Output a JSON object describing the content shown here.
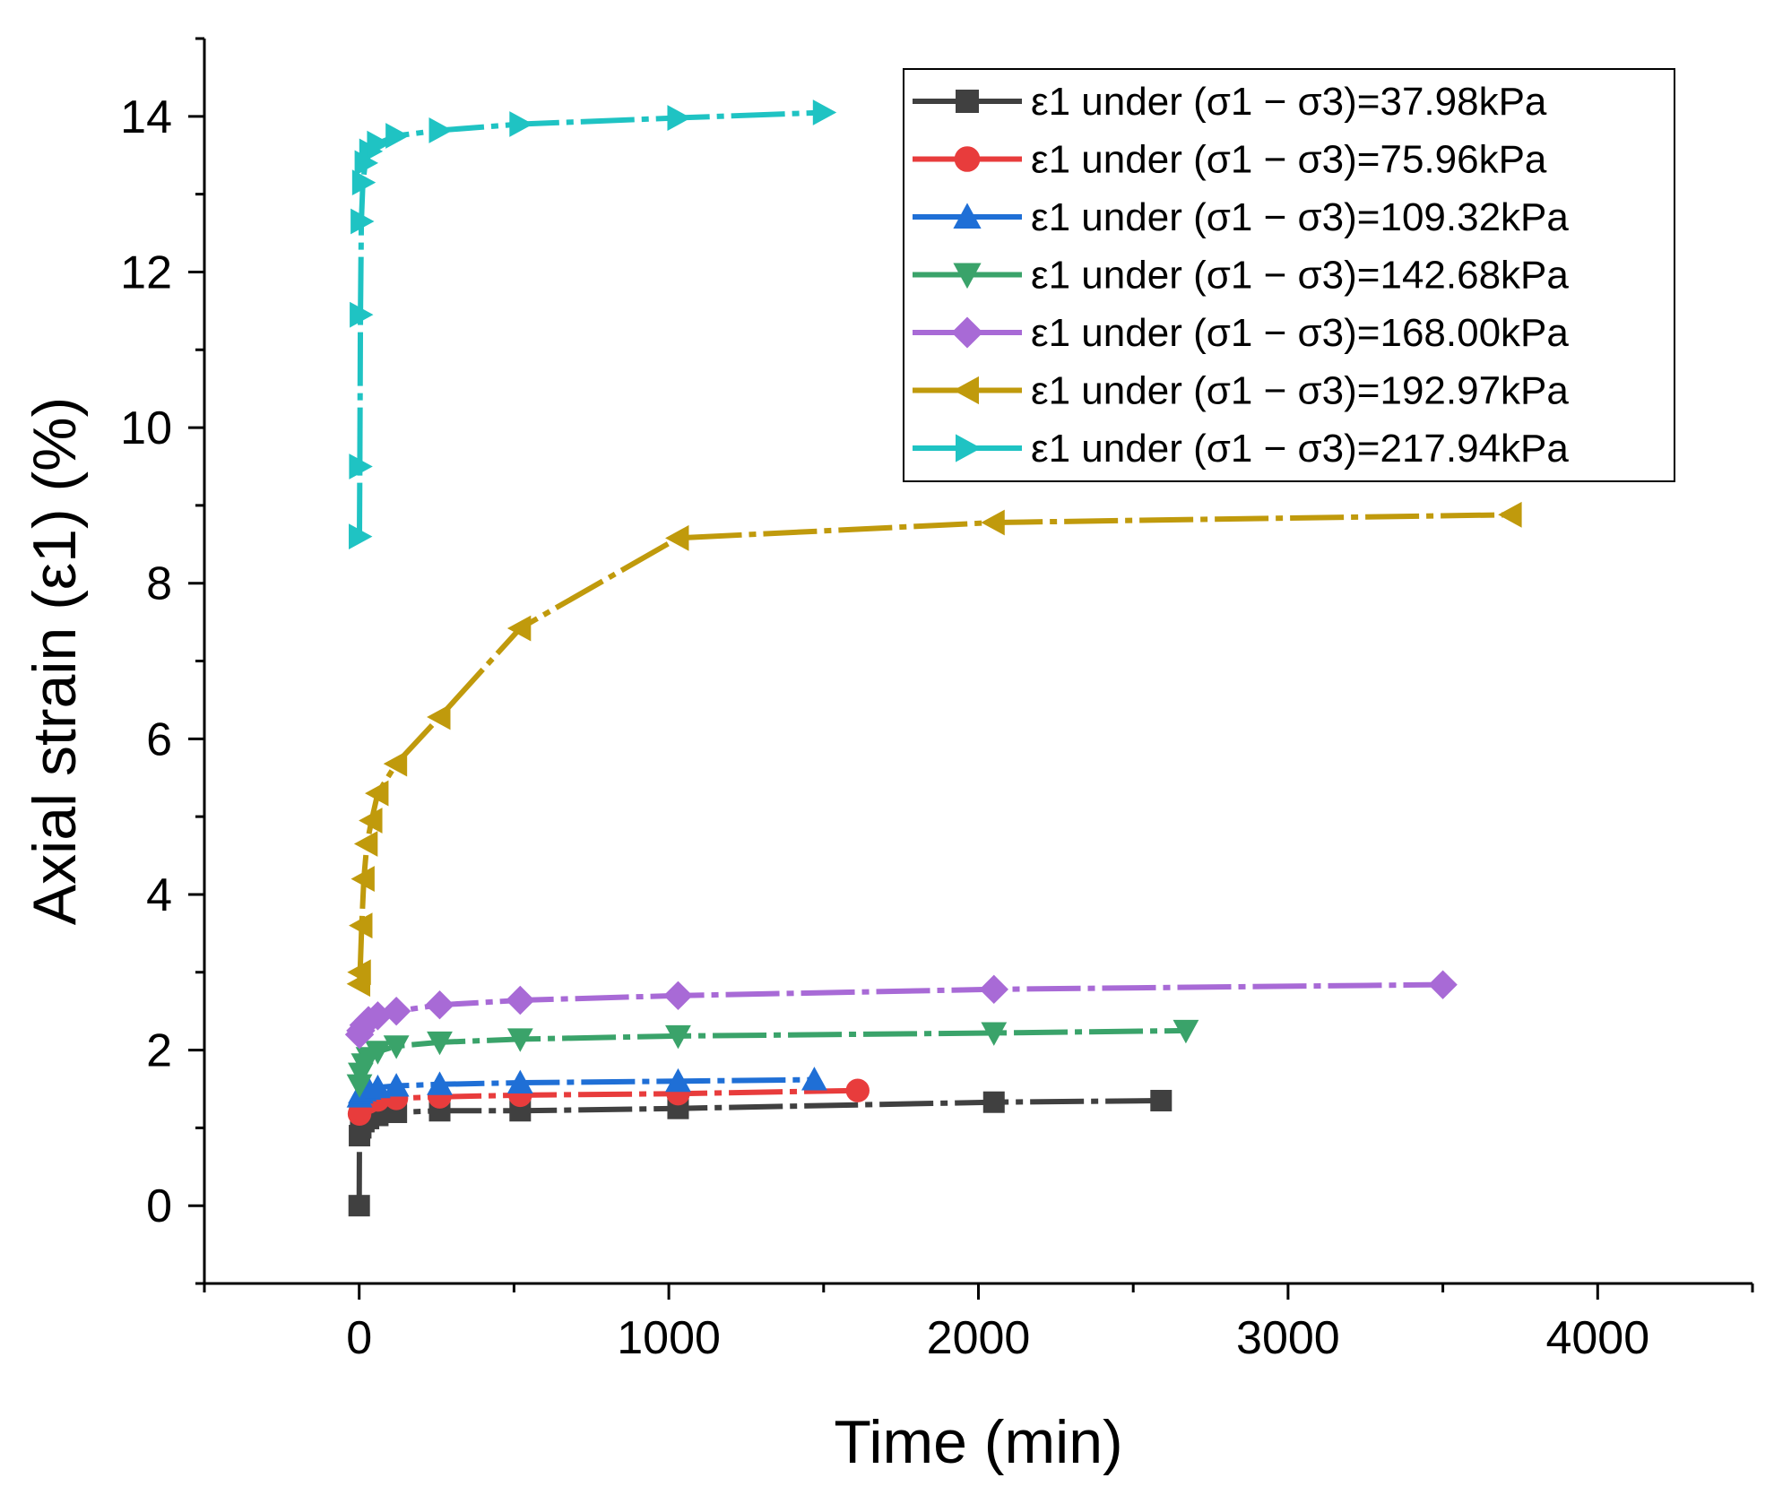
{
  "chart_data": {
    "type": "line",
    "title": "",
    "xlabel": "Time (min)",
    "ylabel": "Axial strain (ε1) (%)",
    "xlim": [
      -500,
      4500
    ],
    "ylim": [
      -1,
      15
    ],
    "xticks": [
      0,
      1000,
      2000,
      3000,
      4000
    ],
    "yticks": [
      0,
      2,
      4,
      6,
      8,
      10,
      12,
      14
    ],
    "grid": false,
    "legend_position": "top-right",
    "series": [
      {
        "name": "ε1 under (σ1 − σ3)=37.98kPa",
        "color": "#404040",
        "marker": "square",
        "points": [
          [
            0,
            0
          ],
          [
            1,
            0.9
          ],
          [
            5,
            1.0
          ],
          [
            15,
            1.08
          ],
          [
            30,
            1.12
          ],
          [
            60,
            1.16
          ],
          [
            120,
            1.2
          ],
          [
            260,
            1.22
          ],
          [
            520,
            1.22
          ],
          [
            1030,
            1.25
          ],
          [
            2050,
            1.33
          ],
          [
            2590,
            1.35
          ]
        ]
      },
      {
        "name": "ε1 under (σ1 − σ3)=75.96kPa",
        "color": "#e83c3c",
        "marker": "circle",
        "points": [
          [
            1,
            1.18
          ],
          [
            5,
            1.25
          ],
          [
            15,
            1.3
          ],
          [
            30,
            1.33
          ],
          [
            60,
            1.36
          ],
          [
            120,
            1.38
          ],
          [
            260,
            1.4
          ],
          [
            520,
            1.42
          ],
          [
            1030,
            1.44
          ],
          [
            1610,
            1.48
          ]
        ]
      },
      {
        "name": "ε1 under (σ1 − σ3)=109.32kPa",
        "color": "#1f6fd6",
        "marker": "triangle-up",
        "points": [
          [
            1,
            1.4
          ],
          [
            5,
            1.45
          ],
          [
            15,
            1.48
          ],
          [
            30,
            1.5
          ],
          [
            60,
            1.52
          ],
          [
            120,
            1.54
          ],
          [
            260,
            1.56
          ],
          [
            520,
            1.58
          ],
          [
            1030,
            1.6
          ],
          [
            1470,
            1.62
          ]
        ]
      },
      {
        "name": "ε1 under (σ1 − σ3)=142.68kPa",
        "color": "#3aa36a",
        "marker": "triangle-down",
        "points": [
          [
            1,
            1.55
          ],
          [
            5,
            1.7
          ],
          [
            15,
            1.82
          ],
          [
            30,
            1.9
          ],
          [
            60,
            1.98
          ],
          [
            120,
            2.05
          ],
          [
            260,
            2.1
          ],
          [
            520,
            2.14
          ],
          [
            1030,
            2.18
          ],
          [
            2050,
            2.22
          ],
          [
            2670,
            2.25
          ]
        ]
      },
      {
        "name": "ε1 under (σ1 − σ3)=168.00kPa",
        "color": "#a86ad6",
        "marker": "diamond",
        "points": [
          [
            1,
            2.2
          ],
          [
            5,
            2.25
          ],
          [
            15,
            2.32
          ],
          [
            30,
            2.38
          ],
          [
            60,
            2.44
          ],
          [
            120,
            2.5
          ],
          [
            260,
            2.58
          ],
          [
            520,
            2.64
          ],
          [
            1030,
            2.7
          ],
          [
            2050,
            2.78
          ],
          [
            3500,
            2.84
          ]
        ]
      },
      {
        "name": "ε1 under (σ1 − σ3)=192.97kPa",
        "color": "#c09a0c",
        "marker": "triangle-left",
        "points": [
          [
            1,
            2.85
          ],
          [
            3,
            3.0
          ],
          [
            8,
            3.6
          ],
          [
            15,
            4.2
          ],
          [
            25,
            4.65
          ],
          [
            40,
            4.95
          ],
          [
            60,
            5.3
          ],
          [
            120,
            5.68
          ],
          [
            260,
            6.28
          ],
          [
            520,
            7.42
          ],
          [
            1030,
            8.58
          ],
          [
            2050,
            8.78
          ],
          [
            3720,
            8.88
          ]
        ]
      },
      {
        "name": "ε1 under (σ1 − σ3)=217.94kPa",
        "color": "#1fc3c3",
        "marker": "triangle-right",
        "points": [
          [
            1,
            8.6
          ],
          [
            2,
            9.5
          ],
          [
            4,
            11.45
          ],
          [
            7,
            12.65
          ],
          [
            12,
            13.15
          ],
          [
            20,
            13.4
          ],
          [
            35,
            13.55
          ],
          [
            60,
            13.65
          ],
          [
            120,
            13.75
          ],
          [
            260,
            13.82
          ],
          [
            520,
            13.9
          ],
          [
            1030,
            13.98
          ],
          [
            1500,
            14.05
          ]
        ]
      }
    ]
  }
}
